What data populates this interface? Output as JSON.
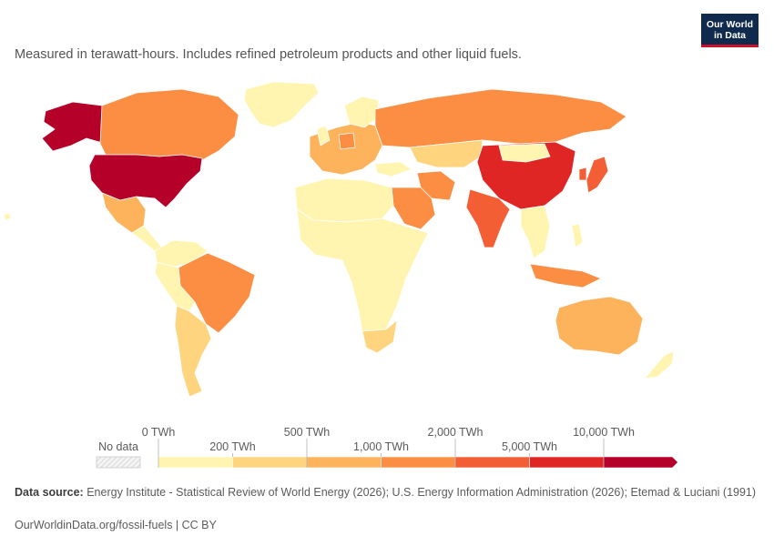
{
  "subtitle": "Measured in terawatt-hours. Includes refined petroleum products and other liquid fuels.",
  "logo": {
    "line1": "Our World",
    "line2": "in Data"
  },
  "legend": {
    "no_data_label": "No data",
    "ticks_top": [
      "0 TWh",
      "500 TWh",
      "2,000 TWh",
      "10,000 TWh"
    ],
    "ticks_bottom": [
      "200 TWh",
      "1,000 TWh",
      "5,000 TWh"
    ],
    "bins": [
      {
        "color": "#fff5b0"
      },
      {
        "color": "#fed57e"
      },
      {
        "color": "#fdb25c"
      },
      {
        "color": "#fb8e42"
      },
      {
        "color": "#f35e35"
      },
      {
        "color": "#e02625"
      },
      {
        "color": "#b5002a"
      }
    ],
    "no_data_color": "#f2f2f2"
  },
  "map_data": {
    "scale_max_twh": 10000,
    "regions": [
      {
        "name": "United States",
        "bin": 6
      },
      {
        "name": "Alaska",
        "bin": 6
      },
      {
        "name": "Canada",
        "bin": 3
      },
      {
        "name": "Greenland",
        "bin": 0
      },
      {
        "name": "Mexico",
        "bin": 2
      },
      {
        "name": "Brazil",
        "bin": 3
      },
      {
        "name": "Argentina",
        "bin": 1
      },
      {
        "name": "Russia",
        "bin": 3
      },
      {
        "name": "China",
        "bin": 5
      },
      {
        "name": "India",
        "bin": 4
      },
      {
        "name": "Japan",
        "bin": 4
      },
      {
        "name": "South Korea",
        "bin": 4
      },
      {
        "name": "Saudi Arabia",
        "bin": 3
      },
      {
        "name": "Iran",
        "bin": 3
      },
      {
        "name": "Australia",
        "bin": 2
      },
      {
        "name": "South Africa",
        "bin": 1
      },
      {
        "name": "Indonesia",
        "bin": 3
      },
      {
        "name": "Europe",
        "bin": 2
      },
      {
        "name": "Germany",
        "bin": 3
      },
      {
        "name": "Kazakhstan",
        "bin": 1
      }
    ]
  },
  "footer": {
    "source_label": "Data source:",
    "source_text": "Energy Institute - Statistical Review of World Energy (2026); U.S. Energy Information Administration (2026); Etemad & Luciani (1991)",
    "credit": "OurWorldinData.org/fossil-fuels | CC BY"
  }
}
